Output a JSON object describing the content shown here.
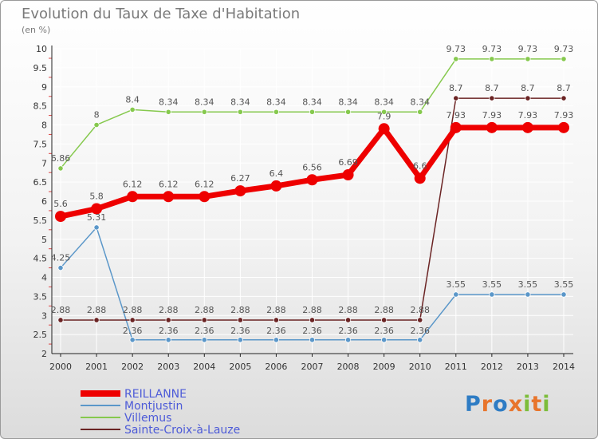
{
  "title": "Evolution du Taux de Taxe d'Habitation",
  "subtitle": "(en %)",
  "logo_text": "Proxiti",
  "colors": {
    "REILLANNE": "#ee0000",
    "Montjustin": "#5b97c9",
    "Villemus": "#86c94e",
    "Sainte-Croix-à-Lauze": "#6b2424",
    "legend_text": "#4d5bd8",
    "axis": "#222222",
    "grid": "#ffffff"
  },
  "chart_data": {
    "type": "line",
    "x": [
      "2000",
      "2001",
      "2002",
      "2003",
      "2004",
      "2005",
      "2006",
      "2007",
      "2008",
      "2009",
      "2010",
      "2011",
      "2012",
      "2013",
      "2014"
    ],
    "ylim": [
      2,
      10
    ],
    "yticks": [
      "2",
      "2.5",
      "3",
      "3.5",
      "4",
      "4.5",
      "5",
      "5.5",
      "6",
      "6.5",
      "7",
      "7.5",
      "8",
      "8.5",
      "9",
      "9.5",
      "10"
    ],
    "grid": true,
    "legend_position": "bottom-left",
    "series": [
      {
        "name": "REILLANNE",
        "values": [
          5.6,
          5.8,
          6.12,
          6.12,
          6.12,
          6.27,
          6.4,
          6.56,
          6.69,
          7.9,
          6.6,
          7.93,
          7.93,
          7.93,
          7.93
        ],
        "labels": [
          "5.6",
          "5.8",
          "6.12",
          "6.12",
          "6.12",
          "6.27",
          "6.4",
          "6.56",
          "6.69",
          "7.9",
          "6.6",
          "7.93",
          "7.93",
          "7.93",
          "7.93"
        ]
      },
      {
        "name": "Montjustin",
        "values": [
          4.25,
          5.31,
          2.36,
          2.36,
          2.36,
          2.36,
          2.36,
          2.36,
          2.36,
          2.36,
          2.36,
          3.55,
          3.55,
          3.55,
          3.55
        ],
        "labels": [
          "4.25",
          "5.31",
          "2.36",
          "2.36",
          "2.36",
          "2.36",
          "2.36",
          "2.36",
          "2.36",
          "2.36",
          "2.36",
          "3.55",
          "3.55",
          "3.55",
          "3.55"
        ]
      },
      {
        "name": "Villemus",
        "values": [
          6.86,
          8,
          8.4,
          8.34,
          8.34,
          8.34,
          8.34,
          8.34,
          8.34,
          8.34,
          8.34,
          9.73,
          9.73,
          9.73,
          9.73
        ],
        "labels": [
          "6.86",
          "8",
          "8.4",
          "8.34",
          "8.34",
          "8.34",
          "8.34",
          "8.34",
          "8.34",
          "8.34",
          "8.34",
          "9.73",
          "9.73",
          "9.73",
          "9.73"
        ]
      },
      {
        "name": "Sainte-Croix-à-Lauze",
        "values": [
          2.88,
          2.88,
          2.88,
          2.88,
          2.88,
          2.88,
          2.88,
          2.88,
          2.88,
          2.88,
          2.88,
          8.7,
          8.7,
          8.7,
          8.7
        ],
        "labels": [
          "2.88",
          "2.88",
          "2.88",
          "2.88",
          "2.88",
          "2.88",
          "2.88",
          "2.88",
          "2.88",
          "2.88",
          "2.88",
          "8.7",
          "8.7",
          "8.7",
          "8.7"
        ]
      }
    ]
  }
}
